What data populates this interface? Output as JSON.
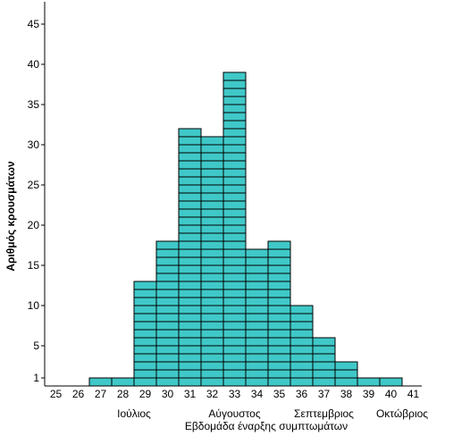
{
  "chart_data": {
    "type": "bar",
    "style": "stacked-unit-histogram",
    "categories": [
      "25",
      "26",
      "27",
      "28",
      "29",
      "30",
      "31",
      "32",
      "33",
      "34",
      "35",
      "36",
      "37",
      "38",
      "39",
      "40",
      "41"
    ],
    "values": [
      0,
      0,
      1,
      1,
      13,
      18,
      32,
      31,
      39,
      17,
      18,
      10,
      6,
      3,
      1,
      1,
      0
    ],
    "ylabel": "Αριθμός κρουσμάτων",
    "xlabel": "Εβδομάδα έναρξης συμπτωμάτων",
    "yticks": [
      "1",
      "5",
      "10",
      "15",
      "20",
      "25",
      "30",
      "35",
      "40",
      "45"
    ],
    "ylim": [
      0,
      48
    ],
    "months": [
      {
        "label": "Ιούλιος",
        "center_week": 28.5
      },
      {
        "label": "Αύγουστος",
        "center_week": 33
      },
      {
        "label": "Σεπτεμβριος",
        "center_week": 37
      },
      {
        "label": "Οκτώβριος",
        "center_week": 40.5
      }
    ],
    "bar_color": "#40C8C8",
    "edge_color": "#000000",
    "grid": false
  }
}
